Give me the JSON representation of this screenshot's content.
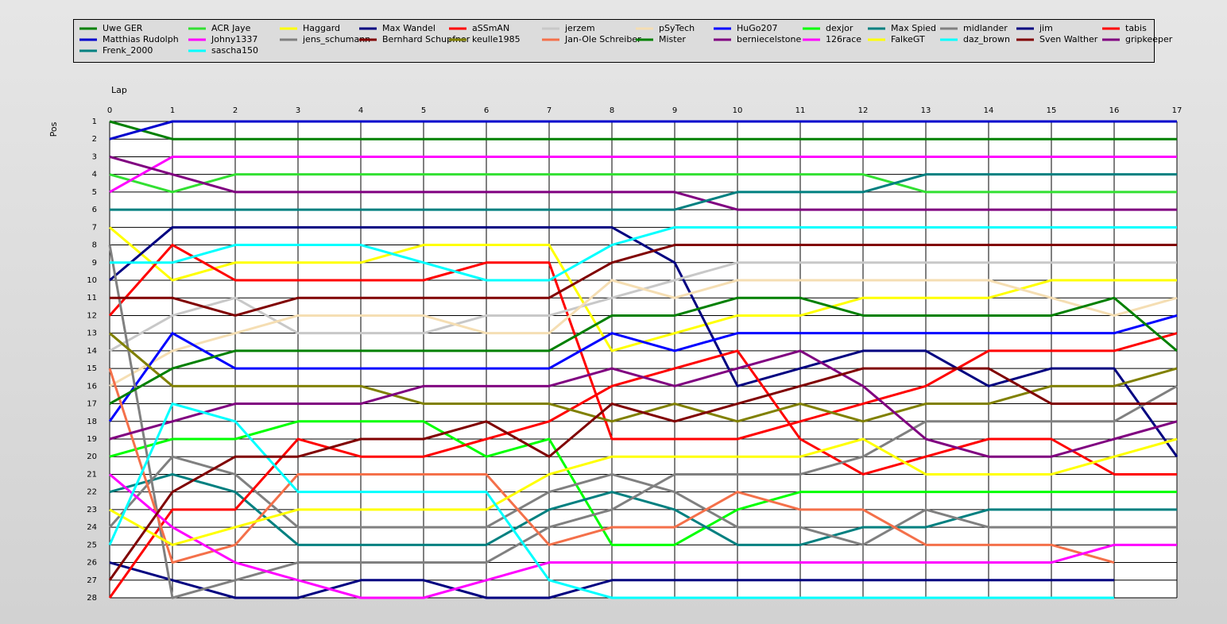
{
  "chart_data": {
    "type": "line",
    "x_label": "Lap",
    "y_label": "Pos",
    "x": [
      0,
      1,
      2,
      3,
      4,
      5,
      6,
      7,
      8,
      9,
      10,
      11,
      12,
      13,
      14,
      15,
      16,
      17
    ],
    "xlim": [
      0,
      17
    ],
    "xticks": [
      0,
      1,
      2,
      3,
      4,
      5,
      6,
      7,
      8,
      9,
      10,
      11,
      12,
      13,
      14,
      15,
      16,
      17
    ],
    "ylim": [
      1,
      28
    ],
    "yticks": [
      1,
      2,
      3,
      4,
      5,
      6,
      7,
      8,
      9,
      10,
      11,
      12,
      13,
      14,
      15,
      16,
      17,
      18,
      19,
      20,
      21,
      22,
      23,
      24,
      25,
      26,
      27,
      28
    ],
    "y_inverted": true,
    "grid": true,
    "series": [
      {
        "name": "Uwe GER",
        "color": "#008000",
        "values": [
          1,
          2,
          2,
          2,
          2,
          2,
          2,
          2,
          2,
          2,
          2,
          2,
          2,
          2,
          2,
          2,
          2,
          2
        ]
      },
      {
        "name": "ACR Jaye",
        "color": "#32e032",
        "values": [
          4,
          5,
          4,
          4,
          4,
          4,
          4,
          4,
          4,
          4,
          4,
          4,
          4,
          5,
          5,
          5,
          5,
          5
        ]
      },
      {
        "name": "Haggard",
        "color": "#ffff00",
        "values": [
          7,
          10,
          9,
          9,
          9,
          8,
          8,
          8,
          14,
          13,
          12,
          12,
          11,
          11,
          11,
          10,
          10,
          10
        ]
      },
      {
        "name": "Max Wandel",
        "color": "#000080",
        "values": [
          10,
          7,
          7,
          7,
          7,
          7,
          7,
          7,
          7,
          9,
          16,
          15,
          14,
          14,
          16,
          15,
          15,
          20
        ]
      },
      {
        "name": "aSSmAN",
        "color": "#ff0000",
        "values": [
          12,
          8,
          10,
          10,
          10,
          10,
          9,
          9,
          19,
          19,
          19,
          18,
          17,
          16,
          14,
          14,
          14,
          13
        ]
      },
      {
        "name": "jerzem",
        "color": "#c8c8c8",
        "values": [
          14,
          12,
          11,
          13,
          13,
          13,
          12,
          12,
          11,
          10,
          9,
          9,
          9,
          9,
          9,
          9,
          9,
          9
        ]
      },
      {
        "name": "pSyTech",
        "color": "#f5deb3",
        "values": [
          16,
          14,
          13,
          12,
          12,
          12,
          13,
          13,
          10,
          11,
          10,
          10,
          10,
          10,
          10,
          11,
          12,
          11
        ]
      },
      {
        "name": "HuGo207",
        "color": "#0000ff",
        "values": [
          18,
          13,
          15,
          15,
          15,
          15,
          15,
          15,
          13,
          14,
          13,
          13,
          13,
          13,
          13,
          13,
          13,
          12
        ]
      },
      {
        "name": "dexjor",
        "color": "#00ff00",
        "values": [
          20,
          19,
          19,
          18,
          18,
          18,
          20,
          19,
          25,
          25,
          23,
          22,
          22,
          22,
          22,
          22,
          22,
          22
        ]
      },
      {
        "name": "Max Spied",
        "color": "#008080",
        "values": [
          22,
          21,
          22,
          25,
          25,
          25,
          25,
          23,
          22,
          23,
          25,
          25,
          24,
          24,
          23,
          23,
          23,
          23
        ]
      },
      {
        "name": "midlander",
        "color": "#808080",
        "values": [
          24,
          20,
          21,
          24,
          24,
          24,
          24,
          22,
          21,
          22,
          24,
          24,
          25,
          23,
          24,
          24,
          24,
          24
        ]
      },
      {
        "name": "jim",
        "color": "#000080",
        "values": [
          26,
          27,
          28,
          28,
          27,
          27,
          28,
          28,
          27,
          27,
          27,
          27,
          27,
          27,
          27,
          27,
          27,
          null
        ]
      },
      {
        "name": "tabis",
        "color": "#ff0000",
        "values": [
          28,
          23,
          23,
          19,
          20,
          20,
          19,
          18,
          16,
          15,
          14,
          19,
          21,
          20,
          19,
          19,
          21,
          21
        ]
      },
      {
        "name": "Matthias  Rudolph",
        "color": "#0000cd",
        "values": [
          2,
          1,
          1,
          1,
          1,
          1,
          1,
          1,
          1,
          1,
          1,
          1,
          1,
          1,
          1,
          1,
          1,
          1
        ]
      },
      {
        "name": "Johny1337",
        "color": "#ff00ff",
        "values": [
          5,
          3,
          3,
          3,
          3,
          3,
          3,
          3,
          3,
          3,
          3,
          3,
          3,
          3,
          3,
          3,
          3,
          3
        ]
      },
      {
        "name": "jens_schumann",
        "color": "#808080",
        "values": [
          8,
          28,
          27,
          26,
          26,
          26,
          26,
          24,
          23,
          21,
          21,
          21,
          20,
          18,
          18,
          18,
          18,
          16
        ]
      },
      {
        "name": "Bernhard Schupfner",
        "color": "#800000",
        "values": [
          11,
          11,
          12,
          11,
          11,
          11,
          11,
          11,
          9,
          8,
          8,
          8,
          8,
          8,
          8,
          8,
          8,
          8
        ]
      },
      {
        "name": "keulle1985",
        "color": "#808000",
        "values": [
          13,
          16,
          16,
          16,
          16,
          17,
          17,
          17,
          18,
          17,
          18,
          17,
          18,
          17,
          17,
          16,
          16,
          15
        ]
      },
      {
        "name": "Jan-Ole Schreiber",
        "color": "#f4704a",
        "values": [
          15,
          26,
          25,
          21,
          21,
          21,
          21,
          25,
          24,
          24,
          22,
          23,
          23,
          25,
          25,
          25,
          26,
          null
        ]
      },
      {
        "name": "Mister",
        "color": "#008000",
        "values": [
          17,
          15,
          14,
          14,
          14,
          14,
          14,
          14,
          12,
          12,
          11,
          11,
          12,
          12,
          12,
          12,
          11,
          14
        ]
      },
      {
        "name": "berniecelstone",
        "color": "#800080",
        "values": [
          19,
          18,
          17,
          17,
          17,
          16,
          16,
          16,
          15,
          16,
          15,
          14,
          16,
          19,
          20,
          20,
          19,
          18
        ]
      },
      {
        "name": "126race",
        "color": "#ff00ff",
        "values": [
          21,
          24,
          26,
          27,
          28,
          28,
          27,
          26,
          26,
          26,
          26,
          26,
          26,
          26,
          26,
          26,
          25,
          25
        ]
      },
      {
        "name": "FalkeGT",
        "color": "#ffff00",
        "values": [
          23,
          25,
          24,
          23,
          23,
          23,
          23,
          21,
          20,
          20,
          20,
          20,
          19,
          21,
          21,
          21,
          20,
          19
        ]
      },
      {
        "name": "daz_brown",
        "color": "#00ffff",
        "values": [
          25,
          17,
          18,
          22,
          22,
          22,
          22,
          27,
          28,
          28,
          28,
          28,
          28,
          28,
          28,
          28,
          28,
          null
        ]
      },
      {
        "name": "Sven Walther",
        "color": "#800000",
        "values": [
          27,
          22,
          20,
          20,
          19,
          19,
          18,
          20,
          17,
          18,
          17,
          16,
          15,
          15,
          15,
          17,
          17,
          17
        ]
      },
      {
        "name": "gripkeeper",
        "color": "#800080",
        "values": [
          3,
          4,
          5,
          5,
          5,
          5,
          5,
          5,
          5,
          5,
          6,
          6,
          6,
          6,
          6,
          6,
          6,
          6
        ]
      },
      {
        "name": "Frenk_2000",
        "color": "#008080",
        "values": [
          6,
          6,
          6,
          6,
          6,
          6,
          6,
          6,
          6,
          6,
          5,
          5,
          5,
          4,
          4,
          4,
          4,
          4
        ]
      },
      {
        "name": "sascha150",
        "color": "#00ffff",
        "values": [
          9,
          9,
          8,
          8,
          8,
          9,
          10,
          10,
          8,
          7,
          7,
          7,
          7,
          7,
          7,
          7,
          7,
          7
        ]
      }
    ]
  }
}
